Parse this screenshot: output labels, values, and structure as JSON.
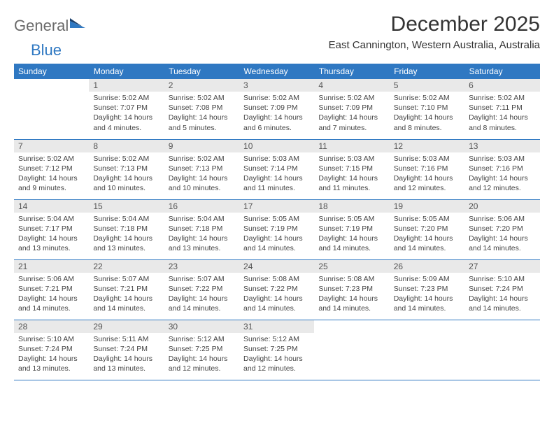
{
  "logo": {
    "part1": "General",
    "part2": "Blue"
  },
  "title": "December 2025",
  "location": "East Cannington, Western Australia, Australia",
  "colors": {
    "header_bg": "#2f78c2",
    "header_fg": "#ffffff",
    "daynum_bg": "#e9e9e9",
    "daynum_fg": "#555555",
    "body_fg": "#444444",
    "row_border": "#2f78c2"
  },
  "day_headers": [
    "Sunday",
    "Monday",
    "Tuesday",
    "Wednesday",
    "Thursday",
    "Friday",
    "Saturday"
  ],
  "weeks": [
    [
      {
        "n": "",
        "sr": "",
        "ss": "",
        "dl": ""
      },
      {
        "n": "1",
        "sr": "Sunrise: 5:02 AM",
        "ss": "Sunset: 7:07 PM",
        "dl": "Daylight: 14 hours and 4 minutes."
      },
      {
        "n": "2",
        "sr": "Sunrise: 5:02 AM",
        "ss": "Sunset: 7:08 PM",
        "dl": "Daylight: 14 hours and 5 minutes."
      },
      {
        "n": "3",
        "sr": "Sunrise: 5:02 AM",
        "ss": "Sunset: 7:09 PM",
        "dl": "Daylight: 14 hours and 6 minutes."
      },
      {
        "n": "4",
        "sr": "Sunrise: 5:02 AM",
        "ss": "Sunset: 7:09 PM",
        "dl": "Daylight: 14 hours and 7 minutes."
      },
      {
        "n": "5",
        "sr": "Sunrise: 5:02 AM",
        "ss": "Sunset: 7:10 PM",
        "dl": "Daylight: 14 hours and 8 minutes."
      },
      {
        "n": "6",
        "sr": "Sunrise: 5:02 AM",
        "ss": "Sunset: 7:11 PM",
        "dl": "Daylight: 14 hours and 8 minutes."
      }
    ],
    [
      {
        "n": "7",
        "sr": "Sunrise: 5:02 AM",
        "ss": "Sunset: 7:12 PM",
        "dl": "Daylight: 14 hours and 9 minutes."
      },
      {
        "n": "8",
        "sr": "Sunrise: 5:02 AM",
        "ss": "Sunset: 7:13 PM",
        "dl": "Daylight: 14 hours and 10 minutes."
      },
      {
        "n": "9",
        "sr": "Sunrise: 5:02 AM",
        "ss": "Sunset: 7:13 PM",
        "dl": "Daylight: 14 hours and 10 minutes."
      },
      {
        "n": "10",
        "sr": "Sunrise: 5:03 AM",
        "ss": "Sunset: 7:14 PM",
        "dl": "Daylight: 14 hours and 11 minutes."
      },
      {
        "n": "11",
        "sr": "Sunrise: 5:03 AM",
        "ss": "Sunset: 7:15 PM",
        "dl": "Daylight: 14 hours and 11 minutes."
      },
      {
        "n": "12",
        "sr": "Sunrise: 5:03 AM",
        "ss": "Sunset: 7:16 PM",
        "dl": "Daylight: 14 hours and 12 minutes."
      },
      {
        "n": "13",
        "sr": "Sunrise: 5:03 AM",
        "ss": "Sunset: 7:16 PM",
        "dl": "Daylight: 14 hours and 12 minutes."
      }
    ],
    [
      {
        "n": "14",
        "sr": "Sunrise: 5:04 AM",
        "ss": "Sunset: 7:17 PM",
        "dl": "Daylight: 14 hours and 13 minutes."
      },
      {
        "n": "15",
        "sr": "Sunrise: 5:04 AM",
        "ss": "Sunset: 7:18 PM",
        "dl": "Daylight: 14 hours and 13 minutes."
      },
      {
        "n": "16",
        "sr": "Sunrise: 5:04 AM",
        "ss": "Sunset: 7:18 PM",
        "dl": "Daylight: 14 hours and 13 minutes."
      },
      {
        "n": "17",
        "sr": "Sunrise: 5:05 AM",
        "ss": "Sunset: 7:19 PM",
        "dl": "Daylight: 14 hours and 14 minutes."
      },
      {
        "n": "18",
        "sr": "Sunrise: 5:05 AM",
        "ss": "Sunset: 7:19 PM",
        "dl": "Daylight: 14 hours and 14 minutes."
      },
      {
        "n": "19",
        "sr": "Sunrise: 5:05 AM",
        "ss": "Sunset: 7:20 PM",
        "dl": "Daylight: 14 hours and 14 minutes."
      },
      {
        "n": "20",
        "sr": "Sunrise: 5:06 AM",
        "ss": "Sunset: 7:20 PM",
        "dl": "Daylight: 14 hours and 14 minutes."
      }
    ],
    [
      {
        "n": "21",
        "sr": "Sunrise: 5:06 AM",
        "ss": "Sunset: 7:21 PM",
        "dl": "Daylight: 14 hours and 14 minutes."
      },
      {
        "n": "22",
        "sr": "Sunrise: 5:07 AM",
        "ss": "Sunset: 7:21 PM",
        "dl": "Daylight: 14 hours and 14 minutes."
      },
      {
        "n": "23",
        "sr": "Sunrise: 5:07 AM",
        "ss": "Sunset: 7:22 PM",
        "dl": "Daylight: 14 hours and 14 minutes."
      },
      {
        "n": "24",
        "sr": "Sunrise: 5:08 AM",
        "ss": "Sunset: 7:22 PM",
        "dl": "Daylight: 14 hours and 14 minutes."
      },
      {
        "n": "25",
        "sr": "Sunrise: 5:08 AM",
        "ss": "Sunset: 7:23 PM",
        "dl": "Daylight: 14 hours and 14 minutes."
      },
      {
        "n": "26",
        "sr": "Sunrise: 5:09 AM",
        "ss": "Sunset: 7:23 PM",
        "dl": "Daylight: 14 hours and 14 minutes."
      },
      {
        "n": "27",
        "sr": "Sunrise: 5:10 AM",
        "ss": "Sunset: 7:24 PM",
        "dl": "Daylight: 14 hours and 14 minutes."
      }
    ],
    [
      {
        "n": "28",
        "sr": "Sunrise: 5:10 AM",
        "ss": "Sunset: 7:24 PM",
        "dl": "Daylight: 14 hours and 13 minutes."
      },
      {
        "n": "29",
        "sr": "Sunrise: 5:11 AM",
        "ss": "Sunset: 7:24 PM",
        "dl": "Daylight: 14 hours and 13 minutes."
      },
      {
        "n": "30",
        "sr": "Sunrise: 5:12 AM",
        "ss": "Sunset: 7:25 PM",
        "dl": "Daylight: 14 hours and 12 minutes."
      },
      {
        "n": "31",
        "sr": "Sunrise: 5:12 AM",
        "ss": "Sunset: 7:25 PM",
        "dl": "Daylight: 14 hours and 12 minutes."
      },
      {
        "n": "",
        "sr": "",
        "ss": "",
        "dl": ""
      },
      {
        "n": "",
        "sr": "",
        "ss": "",
        "dl": ""
      },
      {
        "n": "",
        "sr": "",
        "ss": "",
        "dl": ""
      }
    ]
  ]
}
